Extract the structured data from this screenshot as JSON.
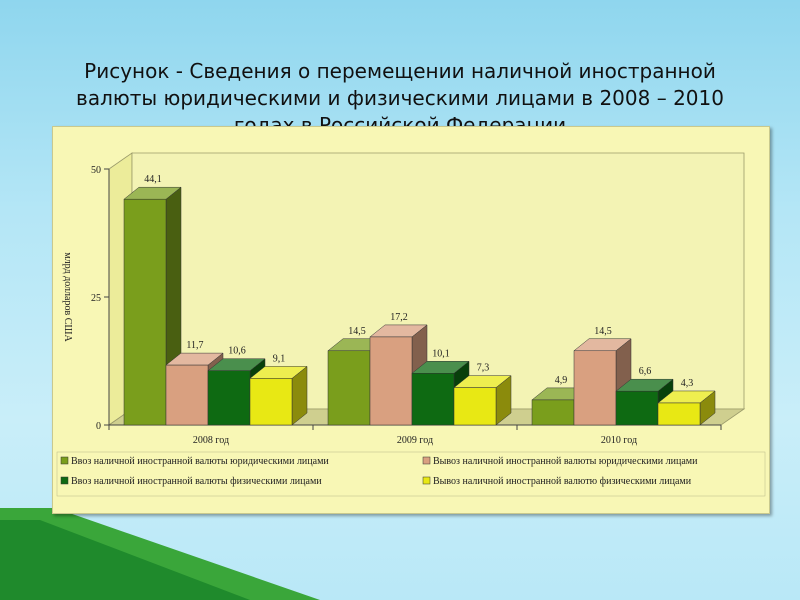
{
  "slide": {
    "title_lines": [
      "Рисунок - Сведения о перемещении наличной иностранной",
      "валюты юридическими и физическими лицами в 2008 – 2010",
      "годах в Российской Федерации"
    ],
    "colors": {
      "background": "#a8e1f3",
      "panel": "#f8f7b5",
      "accent_green": "#2e9e2e"
    }
  },
  "chart_data": {
    "type": "bar",
    "categories": [
      "2008 год",
      "2009 год",
      "2010 год"
    ],
    "series": [
      {
        "name": "Ввоз наличной иностранной валюты юридическими лицами",
        "values": [
          44.1,
          14.5,
          4.9
        ],
        "labels": [
          "44,1",
          "14,5",
          "4,9"
        ],
        "color": "#7a9e1c"
      },
      {
        "name": "Вывоз наличной иностранной валюты юридическими лицами",
        "values": [
          11.7,
          17.2,
          14.5
        ],
        "labels": [
          "11,7",
          "17,2",
          "14,5"
        ],
        "color": "#d9a080"
      },
      {
        "name": "Ввоз наличной иностранной валюты физическими лицами",
        "values": [
          10.6,
          10.1,
          6.6
        ],
        "labels": [
          "10,6",
          "10,1",
          "6,6"
        ],
        "color": "#0e6a12"
      },
      {
        "name": "Вывоз наличной иностранной валютю физическими лицами",
        "values": [
          9.1,
          7.3,
          4.3
        ],
        "labels": [
          "9,1",
          "7,3",
          "4,3"
        ],
        "color": "#e8e814"
      }
    ],
    "yticks": [
      "0",
      "25",
      "50"
    ],
    "ylim": [
      0,
      50
    ],
    "ylabel": "млрд долларов США",
    "grid": false,
    "legend_position": "bottom"
  }
}
